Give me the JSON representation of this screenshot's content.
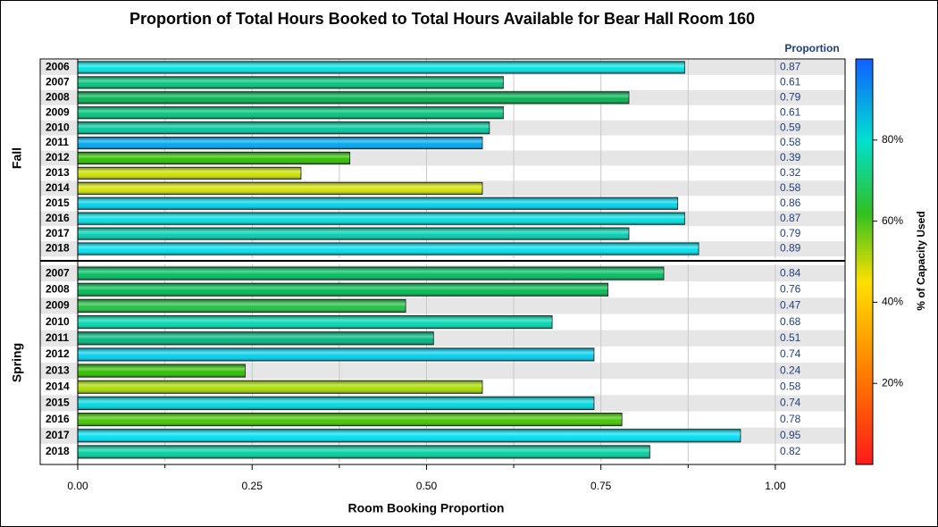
{
  "chart_data": {
    "type": "bar",
    "title": "Proportion of Total Hours Booked to Total Hours Available for Bear Hall Room 160",
    "x_label": "Room Booking Proportion",
    "value_column_header": "Proportion",
    "xlim": [
      0,
      1.1
    ],
    "xticks": [
      {
        "value": 0,
        "label": "0.00"
      },
      {
        "value": 0.25,
        "label": "0.25"
      },
      {
        "value": 0.5,
        "label": "0.50"
      },
      {
        "value": 0.75,
        "label": "0.75"
      },
      {
        "value": 1,
        "label": "1.00"
      }
    ],
    "xminorticks": [
      0.125,
      0.375,
      0.625,
      0.875
    ],
    "grid": true,
    "panels": [
      {
        "name": "Fall",
        "categories": [
          "2006",
          "2007",
          "2008",
          "2009",
          "2010",
          "2011",
          "2012",
          "2013",
          "2014",
          "2015",
          "2016",
          "2017",
          "2018"
        ],
        "values": [
          0.87,
          0.61,
          0.79,
          0.61,
          0.59,
          0.58,
          0.39,
          0.32,
          0.58,
          0.86,
          0.87,
          0.79,
          0.89
        ],
        "colors": [
          "#00e4e4",
          "#00c47c",
          "#00b450",
          "#00c47c",
          "#00c89c",
          "#00a8f0",
          "#30c000",
          "#c8e000",
          "#d4e400",
          "#00d4ec",
          "#00e0e4",
          "#00d0b0",
          "#00e0f0"
        ]
      },
      {
        "name": "Spring",
        "categories": [
          "2007",
          "2008",
          "2009",
          "2010",
          "2011",
          "2012",
          "2013",
          "2014",
          "2015",
          "2016",
          "2017",
          "2018"
        ],
        "values": [
          0.84,
          0.76,
          0.47,
          0.68,
          0.51,
          0.74,
          0.24,
          0.58,
          0.74,
          0.78,
          0.95,
          0.82
        ],
        "colors": [
          "#00c060",
          "#00bc50",
          "#20c040",
          "#00d8b0",
          "#00b880",
          "#00d0f0",
          "#30c000",
          "#a8dc00",
          "#00d8e0",
          "#44c800",
          "#00e0f4",
          "#00d0a0"
        ]
      }
    ],
    "colorbar": {
      "label": "% of Capacity Used",
      "lim": [
        0,
        100
      ],
      "ticks": [
        {
          "value": 20,
          "label": "20%"
        },
        {
          "value": 40,
          "label": "40%"
        },
        {
          "value": 60,
          "label": "60%"
        },
        {
          "value": 80,
          "label": "80%"
        }
      ]
    }
  }
}
